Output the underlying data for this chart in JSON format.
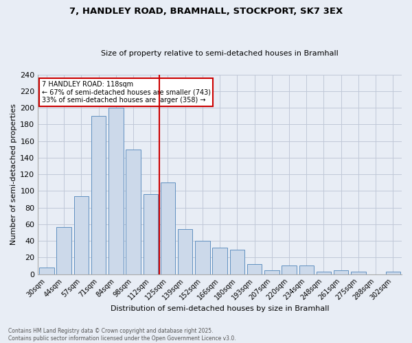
{
  "title": "7, HANDLEY ROAD, BRAMHALL, STOCKPORT, SK7 3EX",
  "subtitle": "Size of property relative to semi-detached houses in Bramhall",
  "xlabel": "Distribution of semi-detached houses by size in Bramhall",
  "ylabel": "Number of semi-detached properties",
  "bar_labels": [
    "30sqm",
    "44sqm",
    "57sqm",
    "71sqm",
    "84sqm",
    "98sqm",
    "112sqm",
    "125sqm",
    "139sqm",
    "152sqm",
    "166sqm",
    "180sqm",
    "193sqm",
    "207sqm",
    "220sqm",
    "234sqm",
    "248sqm",
    "261sqm",
    "275sqm",
    "288sqm",
    "302sqm"
  ],
  "bar_values": [
    8,
    57,
    94,
    190,
    200,
    150,
    96,
    110,
    54,
    40,
    32,
    29,
    12,
    5,
    10,
    10,
    3,
    5,
    3,
    0,
    3
  ],
  "bar_color": "#ccd9ea",
  "bar_edge_color": "#6090c0",
  "grid_color": "#c0c8d8",
  "background_color": "#e8edf5",
  "vline_x": 7.0,
  "vline_color": "#cc0000",
  "annotation_title": "7 HANDLEY ROAD: 118sqm",
  "annotation_line1": "← 67% of semi-detached houses are smaller (743)",
  "annotation_line2": "33% of semi-detached houses are larger (358) →",
  "annotation_box_color": "#cc0000",
  "footer_line1": "Contains HM Land Registry data © Crown copyright and database right 2025.",
  "footer_line2": "Contains public sector information licensed under the Open Government Licence v3.0.",
  "ylim": [
    0,
    240
  ],
  "yticks": [
    0,
    20,
    40,
    60,
    80,
    100,
    120,
    140,
    160,
    180,
    200,
    220,
    240
  ]
}
